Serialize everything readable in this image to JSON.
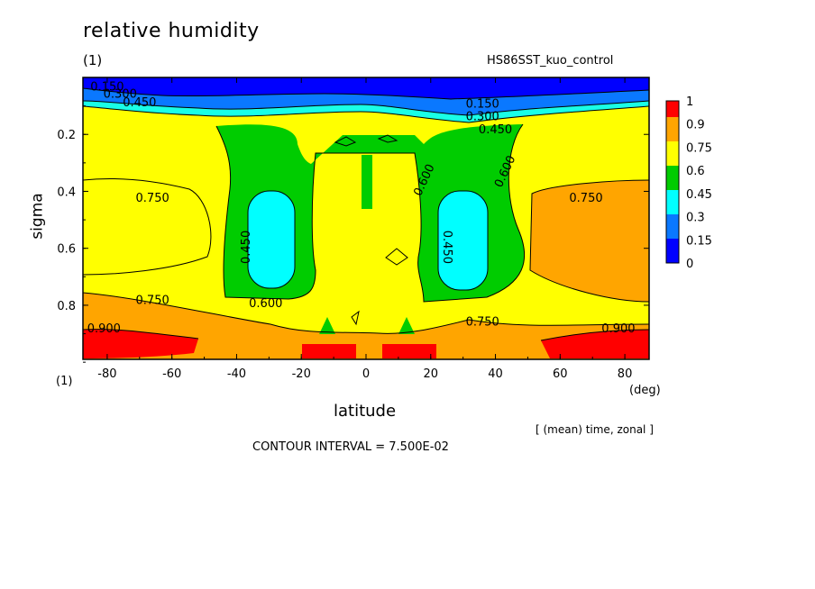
{
  "header": {
    "title": "relative humidity",
    "subtitle": "(1)",
    "run_name": "HS86SST_kuo_control",
    "corner_label": "(1)",
    "x_unit": "(deg)",
    "note": "[ (mean) time, zonal ]",
    "contour_interval": "CONTOUR INTERVAL = 7.500E-02"
  },
  "chart_data": {
    "type": "heatmap",
    "title": "relative humidity",
    "xlabel": "latitude",
    "ylabel": "sigma",
    "xlim": [
      -87.5,
      87.5
    ],
    "ylim": [
      0.0,
      0.99
    ],
    "y_inverted": true,
    "x_ticks": [
      -80,
      -60,
      -40,
      -20,
      0,
      20,
      40,
      60,
      80
    ],
    "x_tick_labels": [
      "-80",
      "-60",
      "-40",
      "-20",
      "0",
      "20",
      "40",
      "60",
      "80"
    ],
    "y_ticks": [
      0.2,
      0.4,
      0.6,
      0.8
    ],
    "y_tick_labels": [
      "0.2",
      "0.4",
      "0.6",
      "0.8"
    ],
    "colorbar": {
      "levels": [
        0,
        0.15,
        0.3,
        0.45,
        0.6,
        0.75,
        0.9,
        1
      ],
      "labels": [
        "1",
        "0.9",
        "0.75",
        "0.6",
        "0.45",
        "0.3",
        "0.15",
        "0"
      ],
      "colors": [
        "#0000ff",
        "#0a78ff",
        "#00ffff",
        "#00cc00",
        "#ffff00",
        "#ffa500",
        "#ff0000"
      ]
    },
    "contour_labels": [
      {
        "text": "0.150",
        "lat": -80,
        "sigma": 0.03
      },
      {
        "text": "0.300",
        "lat": -76,
        "sigma": 0.055
      },
      {
        "text": "0.450",
        "lat": -70,
        "sigma": 0.085
      },
      {
        "text": "0.150",
        "lat": 36,
        "sigma": 0.09
      },
      {
        "text": "0.300",
        "lat": 36,
        "sigma": 0.135
      },
      {
        "text": "0.450",
        "lat": 40,
        "sigma": 0.18
      },
      {
        "text": "0.600",
        "lat": 19,
        "sigma": 0.35
      },
      {
        "text": "0.600",
        "lat": 44,
        "sigma": 0.32
      },
      {
        "text": "0.750",
        "lat": -66,
        "sigma": 0.42
      },
      {
        "text": "0.750",
        "lat": 68,
        "sigma": 0.42
      },
      {
        "text": "0.450",
        "lat": -36,
        "sigma": 0.58
      },
      {
        "text": "0.450",
        "lat": 24,
        "sigma": 0.58
      },
      {
        "text": "0.750",
        "lat": -66,
        "sigma": 0.78
      },
      {
        "text": "0.600",
        "lat": -31,
        "sigma": 0.79
      },
      {
        "text": "0.750",
        "lat": 36,
        "sigma": 0.855
      },
      {
        "text": "0.900",
        "lat": -81,
        "sigma": 0.88
      },
      {
        "text": "0.900",
        "lat": 78,
        "sigma": 0.88
      }
    ]
  }
}
